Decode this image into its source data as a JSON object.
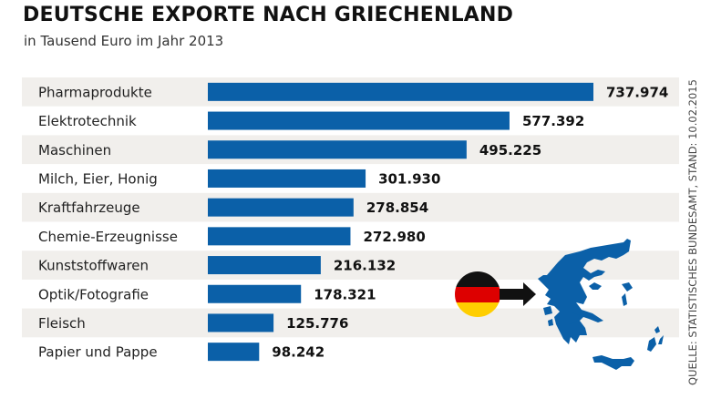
{
  "header": {
    "title": "DEUTSCHE EXPORTE NACH GRIECHENLAND",
    "subtitle": "in Tausend Euro im Jahr 2013"
  },
  "source": "QUELLE: STATISTISCHES BUNDESAMT, STAND: 10.02.2015",
  "colors": {
    "bar": "#0b60a8",
    "stripe": "#f1efec",
    "map": "#0b60a8",
    "flag_black": "#111111",
    "flag_red": "#dd0000",
    "flag_gold": "#ffce00"
  },
  "illustration": {
    "flag_icon": "germany-flag-icon",
    "arrow_icon": "arrow-right-icon",
    "map_icon": "greece-map-icon"
  },
  "chart_data": {
    "type": "bar",
    "orientation": "horizontal",
    "title": "DEUTSCHE EXPORTE NACH GRIECHENLAND",
    "subtitle": "in Tausend Euro im Jahr 2013",
    "xlabel": "",
    "ylabel": "",
    "unit": "Tausend Euro",
    "grid": false,
    "categories": [
      "Pharmaprodukte",
      "Elektrotechnik",
      "Maschinen",
      "Milch, Eier, Honig",
      "Kraftfahrzeuge",
      "Chemie-Erzeugnisse",
      "Kunststoffwaren",
      "Optik/Fotografie",
      "Fleisch",
      "Papier und Pappe"
    ],
    "values": [
      737974,
      577392,
      495225,
      301930,
      278854,
      272980,
      216132,
      178321,
      125776,
      98242
    ],
    "value_labels": [
      "737.974",
      "577.392",
      "495.225",
      "301.930",
      "278.854",
      "272.980",
      "216.132",
      "178.321",
      "125.776",
      "98.242"
    ],
    "xlim": [
      0,
      737974
    ]
  }
}
